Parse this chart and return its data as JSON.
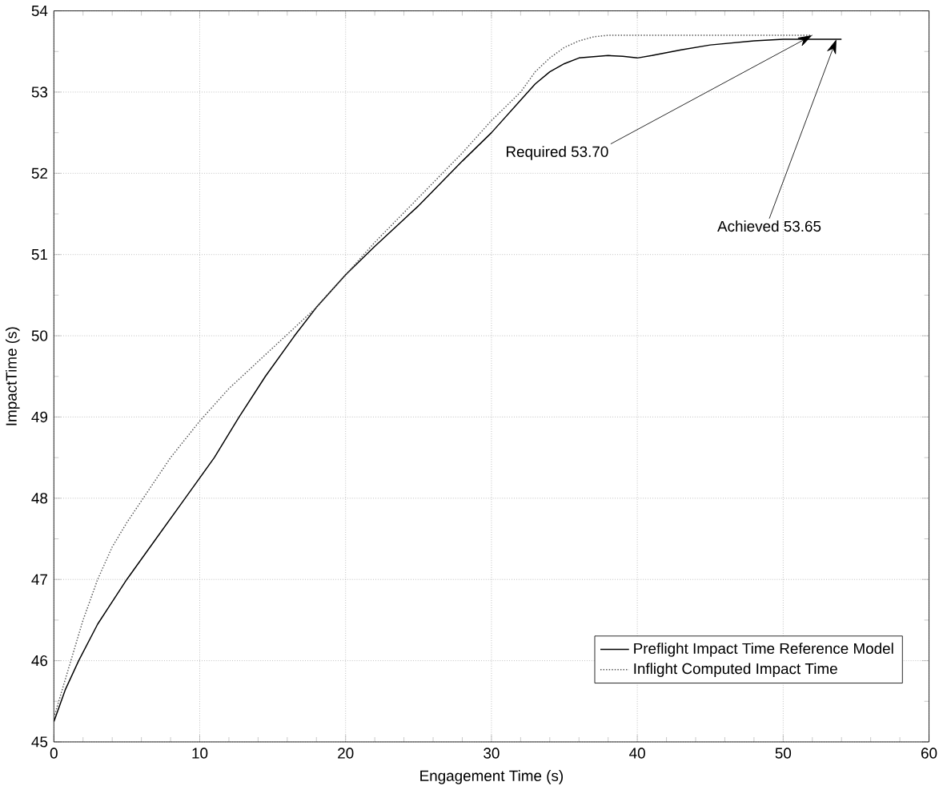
{
  "chart_data": {
    "type": "line",
    "xlabel": "Engagement Time (s)",
    "ylabel": "ImpactTime (s)",
    "xlim": [
      0,
      60
    ],
    "ylim": [
      45,
      54
    ],
    "xticks": [
      0,
      10,
      20,
      30,
      40,
      50,
      60
    ],
    "yticks": [
      45,
      46,
      47,
      48,
      49,
      50,
      51,
      52,
      53,
      54
    ],
    "grid": true,
    "legend": "bottom right",
    "series": [
      {
        "name": "Preflight Impact Time Reference Model",
        "color": "#000000",
        "line_style": "solid",
        "x": [
          0,
          0.8,
          1.7,
          3,
          5,
          7,
          9,
          11,
          12.7,
          14.5,
          16.5,
          18,
          20,
          22,
          25,
          28,
          30,
          32,
          33,
          34,
          35,
          36,
          38,
          39,
          40,
          41,
          43,
          45,
          48,
          50,
          52,
          54
        ],
        "values": [
          45.25,
          45.65,
          46.0,
          46.45,
          47.0,
          47.5,
          48.0,
          48.5,
          49.0,
          49.5,
          50.0,
          50.35,
          50.75,
          51.1,
          51.6,
          52.15,
          52.5,
          52.9,
          53.1,
          53.25,
          53.35,
          53.42,
          53.45,
          53.44,
          53.42,
          53.45,
          53.52,
          53.58,
          53.63,
          53.65,
          53.65,
          53.65
        ]
      },
      {
        "name": "Inflight Computed Impact Time",
        "color": "#555555",
        "line_style": "dotted",
        "x": [
          0,
          0.5,
          1,
          2,
          3,
          4,
          5,
          6.5,
          8,
          10,
          12,
          15,
          18,
          20,
          22,
          25,
          28,
          30,
          32,
          33,
          34,
          35,
          36,
          37,
          38,
          40,
          45,
          50,
          52
        ],
        "values": [
          45.3,
          45.6,
          45.9,
          46.5,
          47.0,
          47.4,
          47.7,
          48.1,
          48.5,
          48.95,
          49.35,
          49.85,
          50.35,
          50.75,
          51.15,
          51.7,
          52.25,
          52.65,
          53.0,
          53.25,
          53.42,
          53.55,
          53.63,
          53.68,
          53.7,
          53.7,
          53.7,
          53.7,
          53.7
        ]
      }
    ],
    "annotations": [
      {
        "text": "Required 53.70",
        "x": 52,
        "y": 53.7
      },
      {
        "text": "Achieved 53.65",
        "x": 53.65,
        "y": 53.65
      }
    ]
  }
}
